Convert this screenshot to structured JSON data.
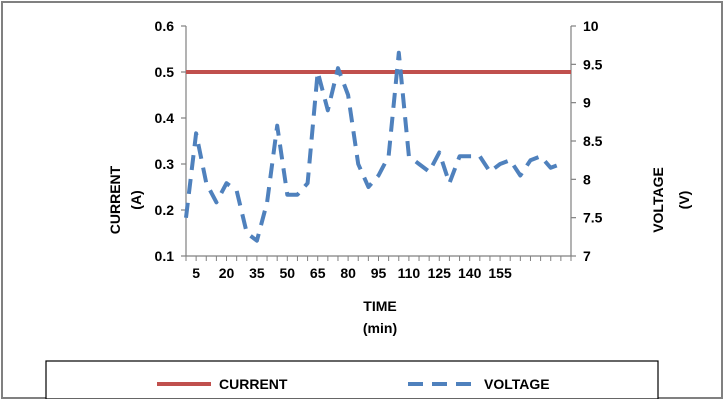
{
  "chart_data": {
    "type": "line",
    "x_tick_labels": [
      "5",
      "20",
      "35",
      "50",
      "65",
      "80",
      "95",
      "110",
      "125",
      "140",
      "155"
    ],
    "xlabel_line1": "TIME",
    "xlabel_line2": "(min)",
    "y_left": {
      "label_line1": "CURRENT",
      "label_line2": "(A)",
      "ylim": [
        0.1,
        0.6
      ],
      "ticks": [
        "0.1",
        "0.2",
        "0.3",
        "0.4",
        "0.5",
        "0.6"
      ]
    },
    "y_right": {
      "label_line1": "VOLTAGE",
      "label_line2": "(V)",
      "ylim": [
        7,
        10
      ],
      "ticks": [
        "7",
        "7.5",
        "8",
        "8.5",
        "9",
        "9.5",
        "10"
      ]
    },
    "series": [
      {
        "name": "CURRENT",
        "axis": "left",
        "color": "#c0504d",
        "style": "solid",
        "x": [
          0,
          190
        ],
        "y": [
          0.5,
          0.5
        ]
      },
      {
        "name": "VOLTAGE",
        "axis": "right",
        "color": "#4f81bd",
        "style": "dashed",
        "x": [
          0,
          5,
          10,
          15,
          20,
          25,
          30,
          35,
          40,
          45,
          50,
          55,
          60,
          65,
          70,
          75,
          80,
          85,
          90,
          95,
          100,
          105,
          110,
          115,
          120,
          125,
          130,
          135,
          140,
          145,
          150,
          155,
          160,
          165,
          170,
          175,
          180,
          185
        ],
        "y": [
          7.5,
          8.6,
          7.95,
          7.7,
          7.95,
          7.85,
          7.3,
          7.2,
          7.7,
          8.7,
          7.8,
          7.8,
          7.95,
          9.4,
          8.9,
          9.45,
          9.1,
          8.2,
          7.9,
          8.05,
          8.3,
          9.65,
          8.3,
          8.2,
          8.1,
          8.35,
          7.95,
          8.3,
          8.3,
          8.3,
          8.1,
          8.2,
          8.25,
          8.05,
          8.25,
          8.3,
          8.15,
          8.2
        ]
      }
    ]
  }
}
